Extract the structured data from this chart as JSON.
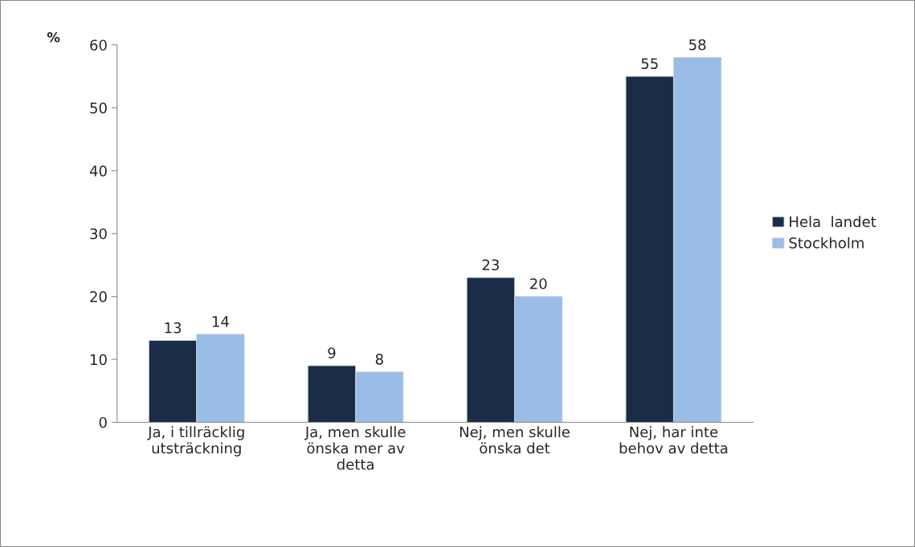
{
  "chart_data": {
    "type": "bar",
    "ylabel": "%",
    "categories": [
      "Ja, i tillräcklig\nutsträckning",
      "Ja, men skulle\nönska mer av\ndetta",
      "Nej, men skulle\nönska det",
      "Nej, har inte\nbehov av detta"
    ],
    "series": [
      {
        "name": "Hela  landet",
        "color": "#1b2c47",
        "values": [
          13,
          9,
          23,
          55
        ]
      },
      {
        "name": "Stockholm",
        "color": "#9abde8",
        "values": [
          14,
          8,
          20,
          58
        ]
      }
    ],
    "ylim": [
      0,
      60
    ],
    "yticks": [
      0,
      10,
      20,
      30,
      40,
      50,
      60
    ],
    "data_labels": true,
    "grid": false,
    "legend": "right"
  }
}
